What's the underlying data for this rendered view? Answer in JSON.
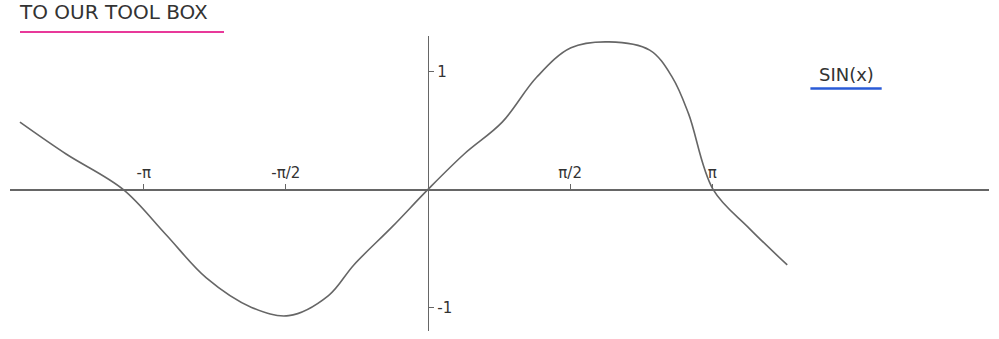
{
  "chart_data": {
    "type": "line",
    "title": "TO OUR TOOL BOX",
    "annotations": [
      {
        "text": "SIN(x)",
        "x": 4.62,
        "y": 0.97
      }
    ],
    "x": [
      -4.51,
      -4.0,
      -3.37,
      -2.9,
      -2.45,
      -1.95,
      -1.54,
      -1.1,
      -0.82,
      -0.4,
      0,
      0.4,
      0.82,
      1.2,
      1.58,
      2.0,
      2.45,
      2.7,
      2.88,
      3.15,
      3.55,
      3.97
    ],
    "values": [
      0.57,
      0.3,
      0,
      -0.38,
      -0.75,
      -1.0,
      -1.07,
      -0.9,
      -0.64,
      -0.32,
      0,
      0.3,
      0.57,
      0.95,
      1.2,
      1.25,
      1.18,
      0.95,
      0.64,
      0,
      -0.33,
      -0.64
    ],
    "color": "#666666",
    "xlim": [
      -4.62,
      6.2
    ],
    "ylim": [
      -1.2,
      1.3
    ],
    "xticks": [
      {
        "value": -3.1416,
        "label": "-π"
      },
      {
        "value": -1.5708,
        "label": "-π/2"
      },
      {
        "value": 1.5708,
        "label": "π/2"
      },
      {
        "value": 3.1416,
        "label": "π"
      }
    ],
    "yticks": [
      1,
      -1
    ],
    "grid": false
  }
}
